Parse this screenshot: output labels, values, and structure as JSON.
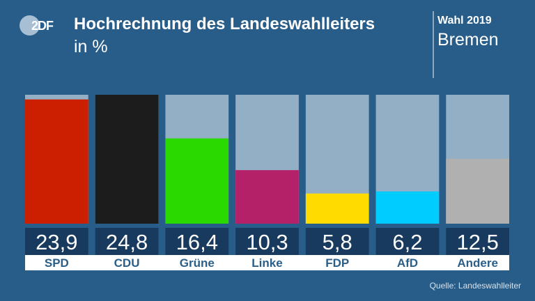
{
  "header": {
    "logo_text": "2DF",
    "title": "Hochrechnung des Landeswahlleiters",
    "subtitle": "in %",
    "election_label": "Wahl 2019",
    "region": "Bremen"
  },
  "source": "Quelle: Landeswahlleiter",
  "chart_data": {
    "type": "bar",
    "title": "Hochrechnung des Landeswahlleiters",
    "subtitle": "in %",
    "xlabel": "",
    "ylabel": "in %",
    "categories": [
      "SPD",
      "CDU",
      "Grüne",
      "Linke",
      "FDP",
      "AfD",
      "Andere"
    ],
    "values": [
      23.9,
      24.8,
      16.4,
      10.3,
      5.8,
      6.2,
      12.5
    ],
    "value_labels": [
      "23,9",
      "24,8",
      "16,4",
      "10,3",
      "5,8",
      "6,2",
      "12,5"
    ],
    "colors": [
      "#cc1e00",
      "#1c1c1c",
      "#29d900",
      "#b52168",
      "#ffdb00",
      "#00ccff",
      "#b0b0b0"
    ],
    "track_color": "#93afc5",
    "ylim": [
      0,
      24.8
    ],
    "grid": false,
    "legend": "none"
  },
  "theme": {
    "background": "#275d88",
    "value_box": "#173a5e",
    "label_strip": "#ffffff",
    "label_text": "#2a5f8a"
  }
}
